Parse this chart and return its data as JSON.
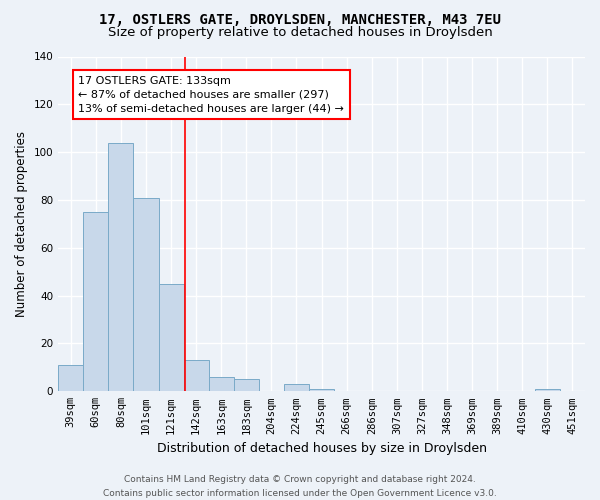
{
  "title": "17, OSTLERS GATE, DROYLSDEN, MANCHESTER, M43 7EU",
  "subtitle": "Size of property relative to detached houses in Droylsden",
  "xlabel": "Distribution of detached houses by size in Droylsden",
  "ylabel": "Number of detached properties",
  "footer": "Contains HM Land Registry data © Crown copyright and database right 2024.\nContains public sector information licensed under the Open Government Licence v3.0.",
  "categories": [
    "39sqm",
    "60sqm",
    "80sqm",
    "101sqm",
    "121sqm",
    "142sqm",
    "163sqm",
    "183sqm",
    "204sqm",
    "224sqm",
    "245sqm",
    "266sqm",
    "286sqm",
    "307sqm",
    "327sqm",
    "348sqm",
    "369sqm",
    "389sqm",
    "410sqm",
    "430sqm",
    "451sqm"
  ],
  "values": [
    11,
    75,
    104,
    81,
    45,
    13,
    6,
    5,
    0,
    3,
    1,
    0,
    0,
    0,
    0,
    0,
    0,
    0,
    0,
    1,
    0
  ],
  "bar_color": "#c8d8ea",
  "bar_edge_color": "#7aaac8",
  "red_line_x": 4.57,
  "annotation_text": "17 OSTLERS GATE: 133sqm\n← 87% of detached houses are smaller (297)\n13% of semi-detached houses are larger (44) →",
  "annotation_box_color": "white",
  "annotation_edge_color": "red",
  "ylim": [
    0,
    140
  ],
  "background_color": "#edf2f8",
  "grid_color": "white",
  "title_fontsize": 10,
  "subtitle_fontsize": 9.5,
  "ylabel_fontsize": 8.5,
  "xlabel_fontsize": 9,
  "tick_fontsize": 7.5,
  "annotation_fontsize": 8,
  "footer_fontsize": 6.5
}
